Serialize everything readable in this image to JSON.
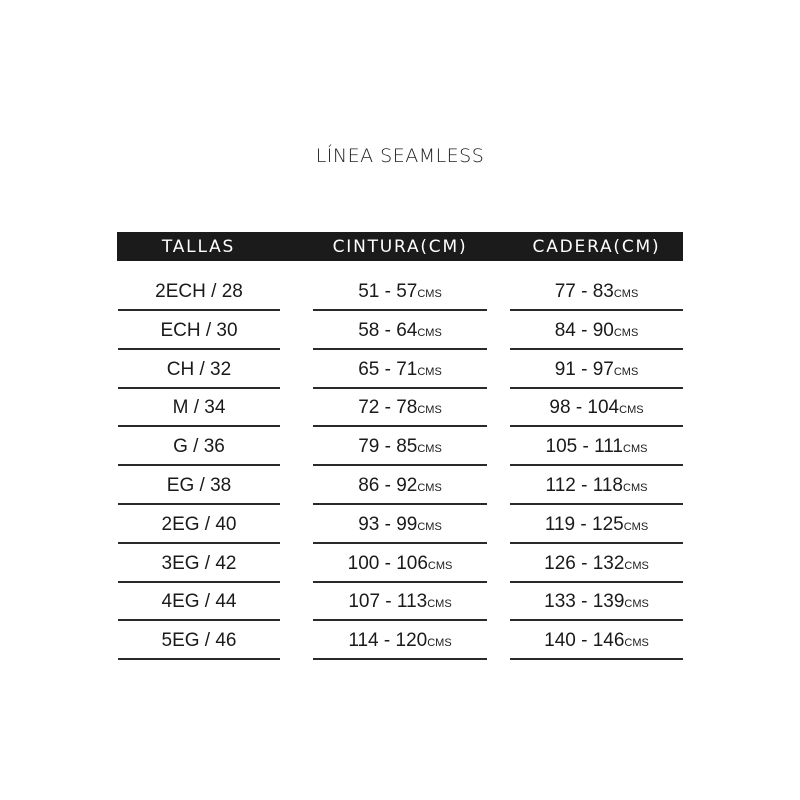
{
  "title": "LÍNEA SEAMLESS",
  "headers": [
    "TALLAS",
    "CINTURA(CM)",
    "CADERA(CM)"
  ],
  "unit": "CMS",
  "rows": [
    {
      "talla": "2ECH / 28",
      "cintura": "51 - 57",
      "cadera": "77 - 83"
    },
    {
      "talla": "ECH / 30",
      "cintura": "58 - 64",
      "cadera": "84 - 90"
    },
    {
      "talla": "CH / 32",
      "cintura": "65 - 71",
      "cadera": "91 - 97"
    },
    {
      "talla": "M / 34",
      "cintura": "72 - 78",
      "cadera": "98 - 104"
    },
    {
      "talla": "G / 36",
      "cintura": "79 - 85",
      "cadera": "105 - 111"
    },
    {
      "talla": "EG / 38",
      "cintura": "86 - 92",
      "cadera": "112 - 118"
    },
    {
      "talla": "2EG / 40",
      "cintura": "93 - 99",
      "cadera": "119 - 125"
    },
    {
      "talla": "3EG / 42",
      "cintura": "100 - 106",
      "cadera": "126 - 132"
    },
    {
      "talla": "4EG / 44",
      "cintura": "107 - 113",
      "cadera": "133 - 139"
    },
    {
      "talla": "5EG / 46",
      "cintura": "114 - 120",
      "cadera": "140 - 146"
    }
  ]
}
